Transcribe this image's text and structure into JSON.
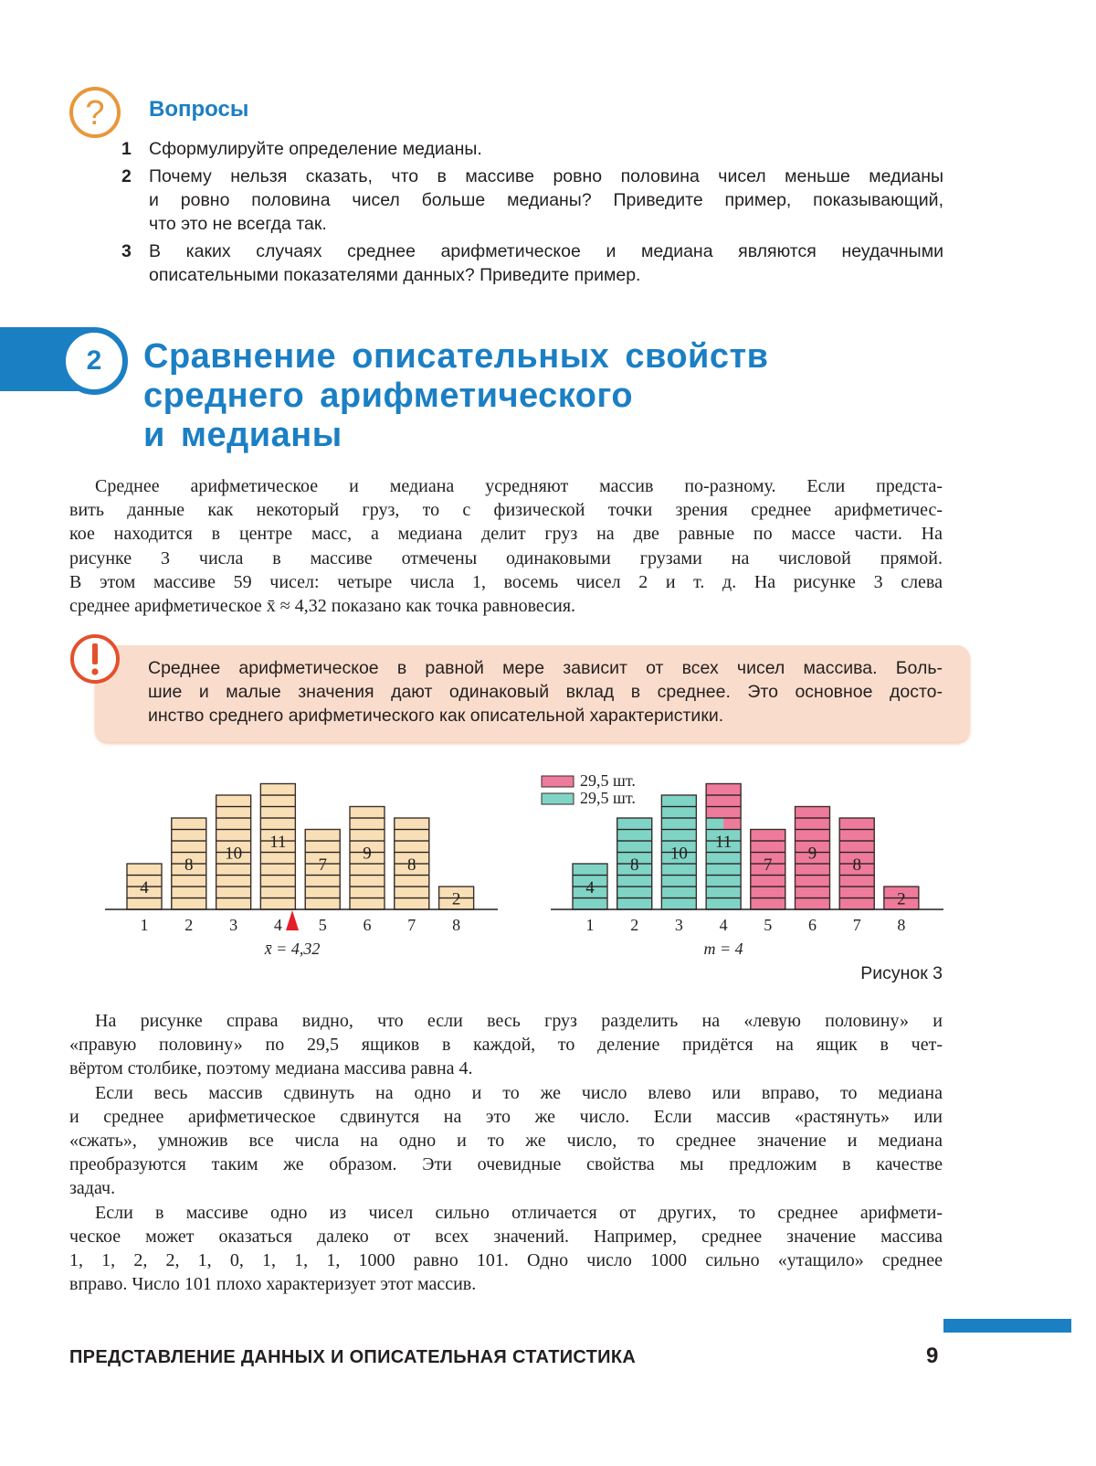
{
  "questions": {
    "icon": "question-circle-icon",
    "title": "Вопросы",
    "items": [
      {
        "num": "1",
        "lines": [
          "Сформулируйте определение медианы."
        ]
      },
      {
        "num": "2",
        "lines": [
          "Почему нельзя сказать, что в массиве ровно половина чисел меньше медианы",
          "и ровно половина чисел больше медианы? Приведите пример, показывающий,",
          "что это не всегда так."
        ]
      },
      {
        "num": "3",
        "lines": [
          "В каких случаях среднее арифметическое и медиана являются неудачными",
          "описательными показателями данных? Приведите пример."
        ]
      }
    ]
  },
  "section": {
    "number": "2",
    "title_lines": [
      "Сравнение описательных свойств",
      "среднего арифметического",
      "и медианы"
    ]
  },
  "intro_paragraph": [
    "Среднее арифметическое и медиана усредняют массив по-разному. Если предста-",
    "вить данные как некоторый груз, то с физической точки зрения среднее арифметичес-",
    "кое находится в центре масс, а медиана делит груз на две равные по массе части. На",
    "рисунке 3 числа в массиве отмечены одинаковыми грузами на числовой прямой.",
    "В этом массиве 59 чисел: четыре числа 1, восемь чисел 2 и т. д. На рисунке 3 слева",
    "среднее арифметическое x̄ ≈ 4,32 показано как точка равновесия."
  ],
  "note": {
    "icon": "exclamation-circle-icon",
    "lines": [
      "Среднее арифметическое в равной мере зависит от всех чисел массива. Боль-",
      "шие и малые значения дают одинаковый вклад в среднее. Это основное досто-",
      "инство среднего арифметического как описательной характеристики."
    ]
  },
  "chart_data": [
    {
      "type": "bar",
      "categories": [
        "1",
        "2",
        "3",
        "4",
        "5",
        "6",
        "7",
        "8"
      ],
      "values": [
        4,
        8,
        10,
        11,
        7,
        9,
        8,
        2
      ],
      "data_labels": [
        "4",
        "8",
        "10",
        "11",
        "7",
        "9",
        "8",
        "2"
      ],
      "marker": {
        "value": 4.32,
        "label": "x̄ = 4,32",
        "color": "#e3202a"
      },
      "bar_color": "#f9dfb6"
    },
    {
      "type": "bar",
      "categories": [
        "1",
        "2",
        "3",
        "4",
        "5",
        "6",
        "7",
        "8"
      ],
      "values": [
        4,
        8,
        10,
        11,
        7,
        9,
        8,
        2
      ],
      "data_labels": [
        "4",
        "8",
        "10",
        "11",
        "7",
        "9",
        "8",
        "2"
      ],
      "series": [
        {
          "name": "29,5 шт.",
          "color": "#ee7b9b",
          "part": "right half"
        },
        {
          "name": "29,5 шт.",
          "color": "#7fd4c5",
          "part": "left half"
        }
      ],
      "split_value": 29.5,
      "marker": {
        "value": 4,
        "label": "m = 4"
      }
    }
  ],
  "figure_caption": "Рисунок 3",
  "body_paragraphs": [
    [
      "На рисунке справа видно, что если весь груз разделить на «левую половину» и",
      "«правую половину» по 29,5 ящиков в каждой, то деление придётся на ящик в чет-",
      "вёртом столбике, поэтому медиана массива равна 4."
    ],
    [
      "Если весь массив сдвинуть на одно и то же число влево или вправо, то медиана",
      "и среднее арифметическое сдвинутся на это же число. Если массив «растянуть» или",
      "«сжать», умножив все числа на одно и то же число, то среднее значение и медиана",
      "преобразуются таким же образом. Эти очевидные свойства мы предложим в качестве",
      "задач."
    ],
    [
      "Если в массиве одно из чисел сильно отличается от других, то среднее арифмети-",
      "ческое может оказаться далеко от всех значений. Например, среднее значение массива",
      "1, 1, 2, 2, 1, 0, 1, 1, 1, 1000 равно 101. Одно число 1000 сильно «утащило» среднее",
      "вправо. Число 101 плохо характеризует этот массив."
    ]
  ],
  "footer": {
    "title": "ПРЕДСТАВЛЕНИЕ ДАННЫХ И ОПИСАТЕЛЬНАЯ СТАТИСТИКА",
    "page_number": "9"
  },
  "colors": {
    "accent": "#1b7fc4",
    "question_icon": "#e8973a",
    "note_icon": "#e4502c",
    "note_bg": "#f9dccb"
  }
}
